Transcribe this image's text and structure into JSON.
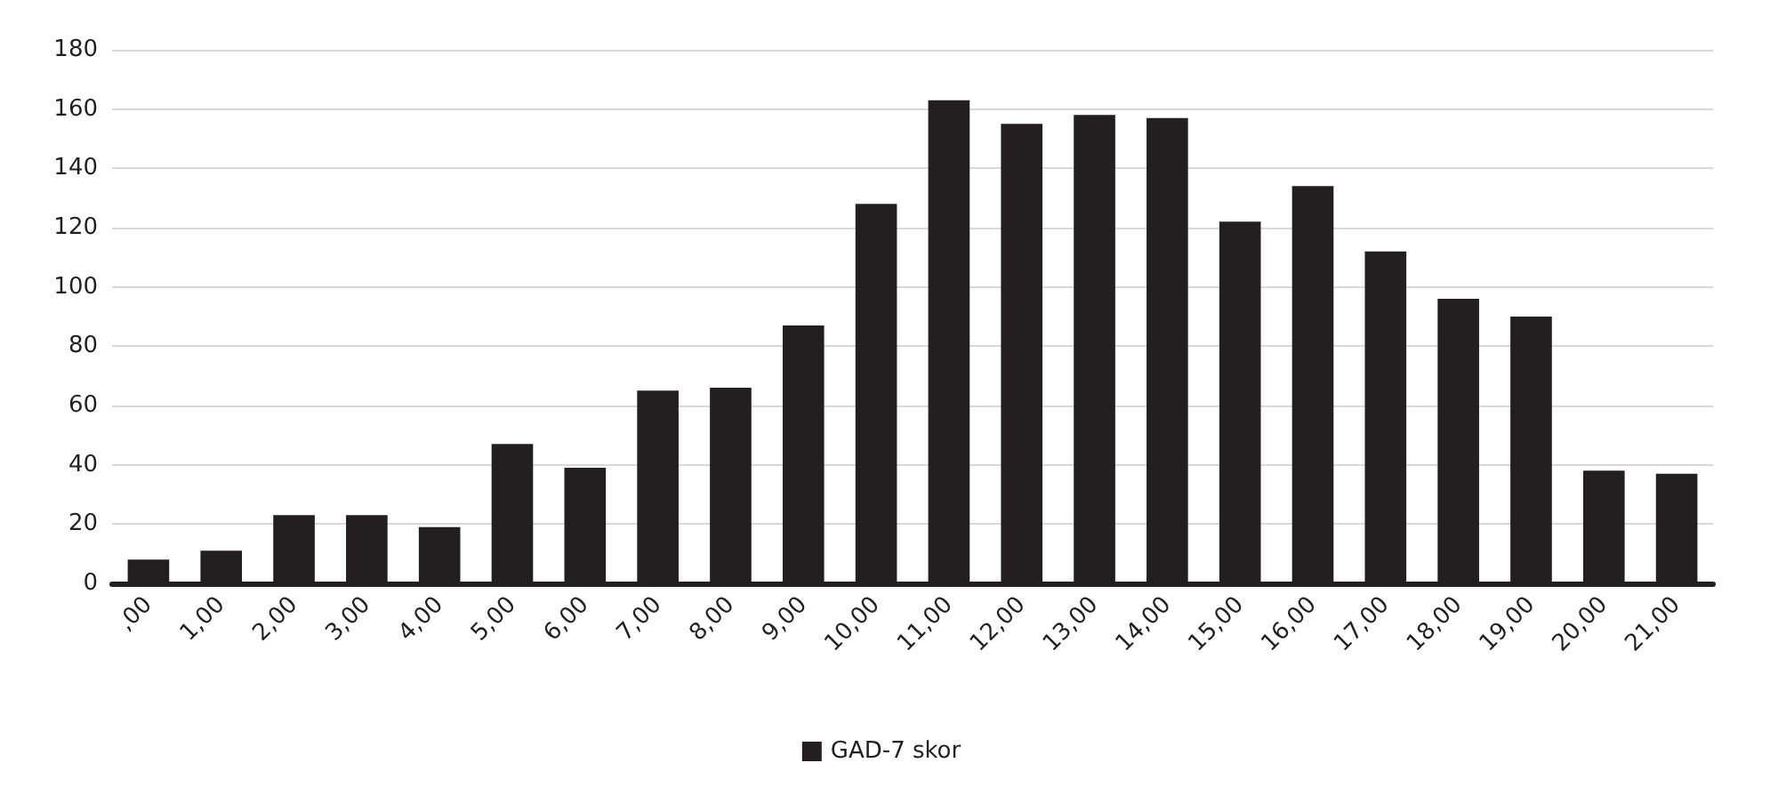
{
  "chart_data": {
    "type": "bar",
    "categories": [
      ",00",
      "1,00",
      "2,00",
      "3,00",
      "4,00",
      "5,00",
      "6,00",
      "7,00",
      "8,00",
      "9,00",
      "10,00",
      "11,00",
      "12,00",
      "13,00",
      "14,00",
      "15,00",
      "16,00",
      "17,00",
      "18,00",
      "19,00",
      "20,00",
      "21,00"
    ],
    "series": [
      {
        "name": "GAD-7 skor",
        "color": "#231f20",
        "values": [
          8,
          11,
          23,
          23,
          19,
          47,
          39,
          65,
          66,
          87,
          128,
          163,
          155,
          158,
          157,
          122,
          134,
          112,
          96,
          90,
          38,
          37
        ]
      }
    ],
    "ylim": [
      0,
      180
    ],
    "yticks": [
      0,
      20,
      40,
      60,
      80,
      100,
      120,
      140,
      160,
      180
    ],
    "grid": "y",
    "legend": "bottom"
  }
}
